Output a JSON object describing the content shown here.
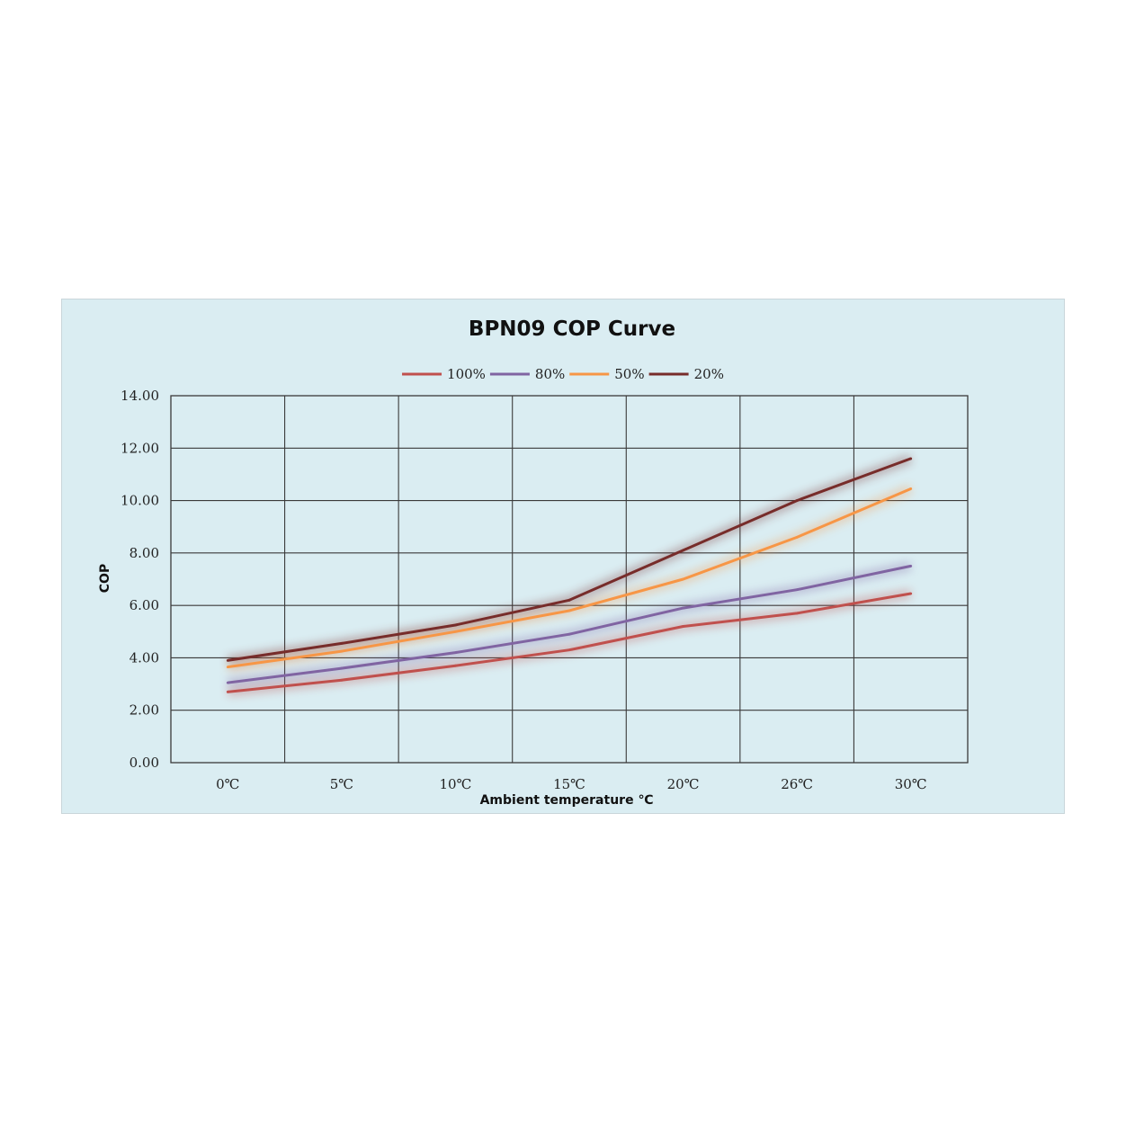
{
  "chart_data": {
    "type": "line",
    "title": "BPN09 COP Curve",
    "xlabel": "Ambient temperature ℃",
    "ylabel": "COP",
    "categories": [
      "0℃",
      "5℃",
      "10℃",
      "15℃",
      "20℃",
      "26℃",
      "30℃"
    ],
    "ylim": [
      0,
      14
    ],
    "yticks": [
      "0.00",
      "2.00",
      "4.00",
      "6.00",
      "8.00",
      "10.00",
      "12.00",
      "14.00"
    ],
    "grid": true,
    "legend_position": "top",
    "series": [
      {
        "name": "100%",
        "color": "#c0504d",
        "values": [
          2.7,
          3.15,
          3.7,
          4.3,
          5.2,
          5.7,
          6.45
        ]
      },
      {
        "name": "80%",
        "color": "#8064a2",
        "values": [
          3.05,
          3.6,
          4.2,
          4.9,
          5.9,
          6.6,
          7.5
        ]
      },
      {
        "name": "50%",
        "color": "#f79646",
        "values": [
          3.65,
          4.25,
          5.0,
          5.8,
          7.0,
          8.6,
          10.45
        ]
      },
      {
        "name": "20%",
        "color": "#772c2a",
        "values": [
          3.9,
          4.55,
          5.25,
          6.2,
          8.1,
          10.0,
          11.6
        ]
      }
    ]
  }
}
